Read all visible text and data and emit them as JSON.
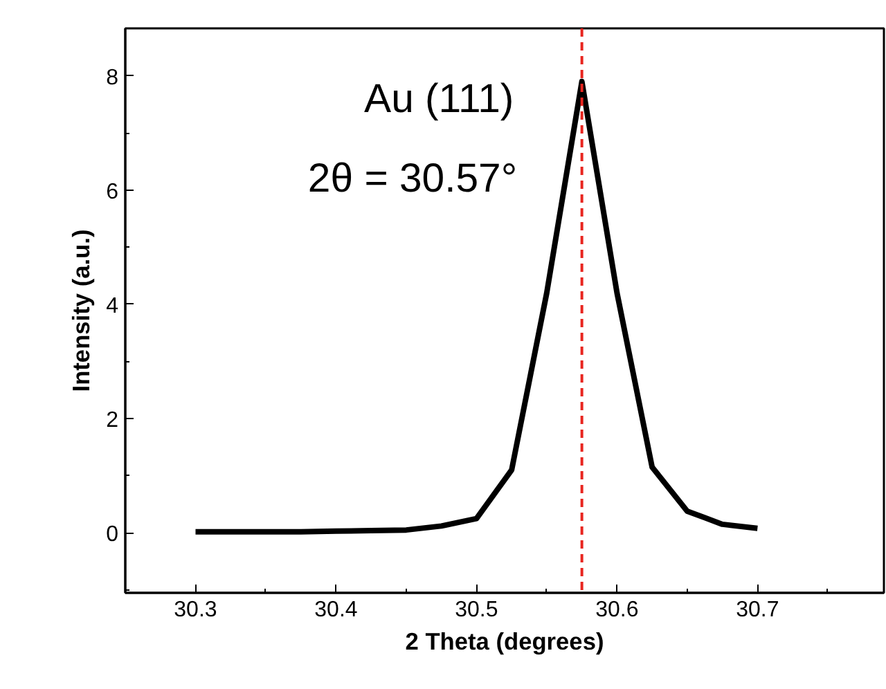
{
  "chart_data": {
    "type": "line",
    "xlabel": "2 Theta (degrees)",
    "ylabel": "Intensity (a.u.)",
    "x": [
      30.3,
      30.325,
      30.35,
      30.375,
      30.4,
      30.425,
      30.45,
      30.475,
      30.5,
      30.525,
      30.55,
      30.575,
      30.6,
      30.625,
      30.65,
      30.675,
      30.7
    ],
    "series": [
      {
        "color": "#000000",
        "values": [
          0.02,
          0.02,
          0.02,
          0.02,
          0.03,
          0.04,
          0.05,
          0.12,
          0.25,
          1.1,
          4.2,
          7.9,
          4.2,
          1.15,
          0.38,
          0.15,
          0.08
        ]
      }
    ],
    "xlim": [
      30.25,
      30.79
    ],
    "xticks": [
      30.3,
      30.4,
      30.5,
      30.6,
      30.7
    ],
    "ylim": [
      -1.05,
      8.83
    ],
    "yticks": [
      0,
      2,
      4,
      6,
      8
    ],
    "ref_lines": [
      {
        "axis": "x",
        "value": 30.575,
        "color": "#e8251f",
        "line_style": "dashed"
      }
    ],
    "annotations": [
      "Au (111)",
      "2θ = 30.57°"
    ],
    "grid": false,
    "marker": "none",
    "line_style": "solid"
  }
}
